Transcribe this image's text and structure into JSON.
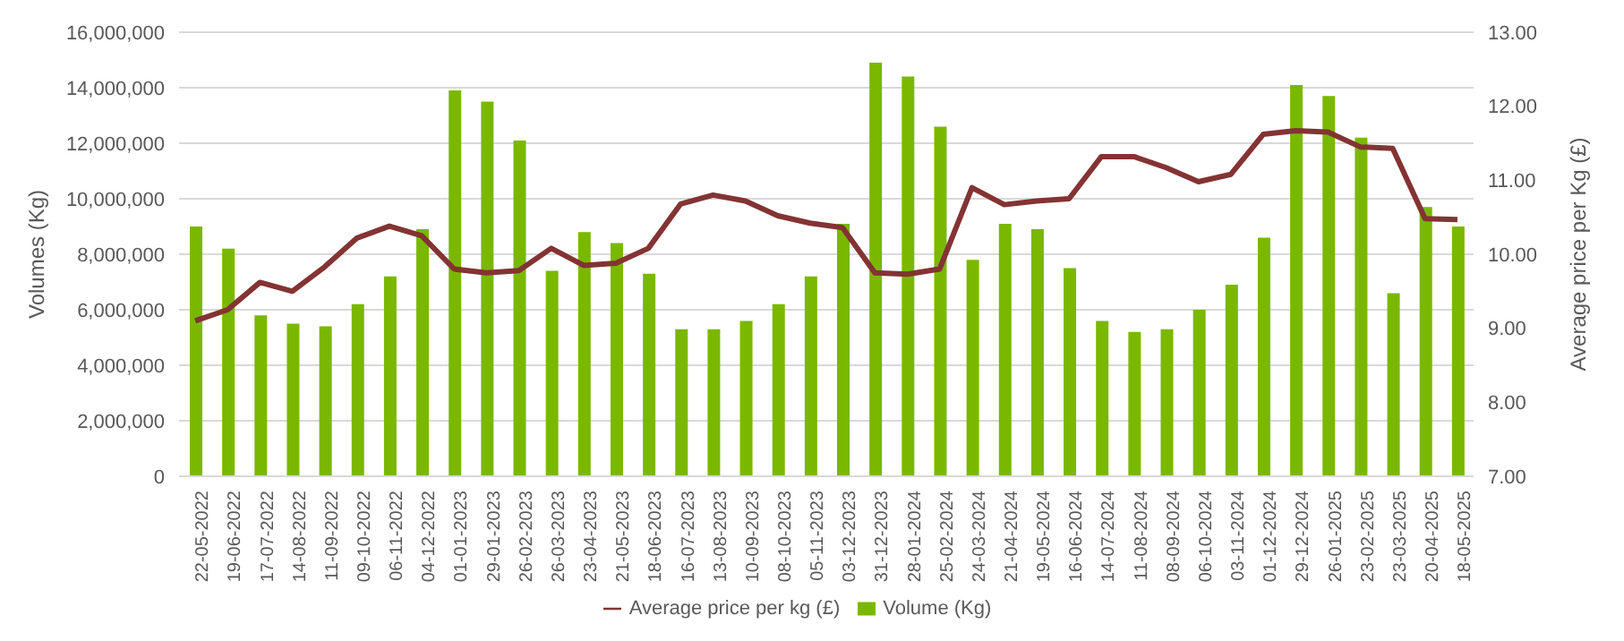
{
  "chart_data": {
    "type": "bar",
    "categories": [
      "22-05-2022",
      "19-06-2022",
      "17-07-2022",
      "14-08-2022",
      "11-09-2022",
      "09-10-2022",
      "06-11-2022",
      "04-12-2022",
      "01-01-2023",
      "29-01-2023",
      "26-02-2023",
      "26-03-2023",
      "23-04-2023",
      "21-05-2023",
      "18-06-2023",
      "16-07-2023",
      "13-08-2023",
      "10-09-2023",
      "08-10-2023",
      "05-11-2023",
      "03-12-2023",
      "31-12-2023",
      "28-01-2024",
      "25-02-2024",
      "24-03-2024",
      "21-04-2024",
      "19-05-2024",
      "16-06-2024",
      "14-07-2024",
      "11-08-2024",
      "08-09-2024",
      "06-10-2024",
      "03-11-2024",
      "01-12-2024",
      "29-12-2024",
      "26-01-2025",
      "23-02-2025",
      "23-03-2025",
      "20-04-2025",
      "18-05-2025"
    ],
    "series": [
      {
        "name": "Volume (Kg)",
        "color": "#7ab800",
        "values": [
          9000000,
          8200000,
          5800000,
          5500000,
          5400000,
          6200000,
          7200000,
          8900000,
          13900000,
          13500000,
          12100000,
          7400000,
          8800000,
          8400000,
          7300000,
          5300000,
          5300000,
          5600000,
          6200000,
          7200000,
          9100000,
          14900000,
          14400000,
          12600000,
          7800000,
          9100000,
          8900000,
          7500000,
          5600000,
          5200000,
          5300000,
          6000000,
          6900000,
          8600000,
          14100000,
          13700000,
          12200000,
          6600000,
          9700000,
          9000000
        ]
      },
      {
        "name": "Average price per kg (£)",
        "type": "line",
        "axis": "y2",
        "color": "#833333",
        "values": [
          9.1,
          9.25,
          9.62,
          9.5,
          9.83,
          10.22,
          10.38,
          10.25,
          9.8,
          9.75,
          9.78,
          10.08,
          9.85,
          9.88,
          10.08,
          10.68,
          10.8,
          10.72,
          10.52,
          10.42,
          10.36,
          9.75,
          9.73,
          9.8,
          10.9,
          10.67,
          10.72,
          10.75,
          11.32,
          11.32,
          11.17,
          10.98,
          11.08,
          11.62,
          11.67,
          11.65,
          11.45,
          11.43,
          10.48,
          10.47
        ]
      }
    ],
    "ylabel": "Volumes (Kg)",
    "y2label": "Average price per Kg (£)",
    "ylim": [
      0,
      16000000
    ],
    "yticks": [
      {
        "value": 0,
        "label": "0"
      },
      {
        "value": 2000000,
        "label": "2,000,000"
      },
      {
        "value": 4000000,
        "label": "4,000,000"
      },
      {
        "value": 6000000,
        "label": "6,000,000"
      },
      {
        "value": 8000000,
        "label": "8,000,000"
      },
      {
        "value": 10000000,
        "label": "10,000,000"
      },
      {
        "value": 12000000,
        "label": "12,000,000"
      },
      {
        "value": 14000000,
        "label": "14,000,000"
      },
      {
        "value": 16000000,
        "label": "16,000,000"
      }
    ],
    "y2lim": [
      7,
      13
    ],
    "y2ticks": [
      {
        "value": 7,
        "label": "7.00"
      },
      {
        "value": 8,
        "label": "8.00"
      },
      {
        "value": 9,
        "label": "9.00"
      },
      {
        "value": 10,
        "label": "10.00"
      },
      {
        "value": 11,
        "label": "11.00"
      },
      {
        "value": 12,
        "label": "12.00"
      },
      {
        "value": 13,
        "label": "13.00"
      }
    ],
    "grid": "y",
    "legend": "bottom",
    "marker": "none",
    "line_style": "solid"
  }
}
